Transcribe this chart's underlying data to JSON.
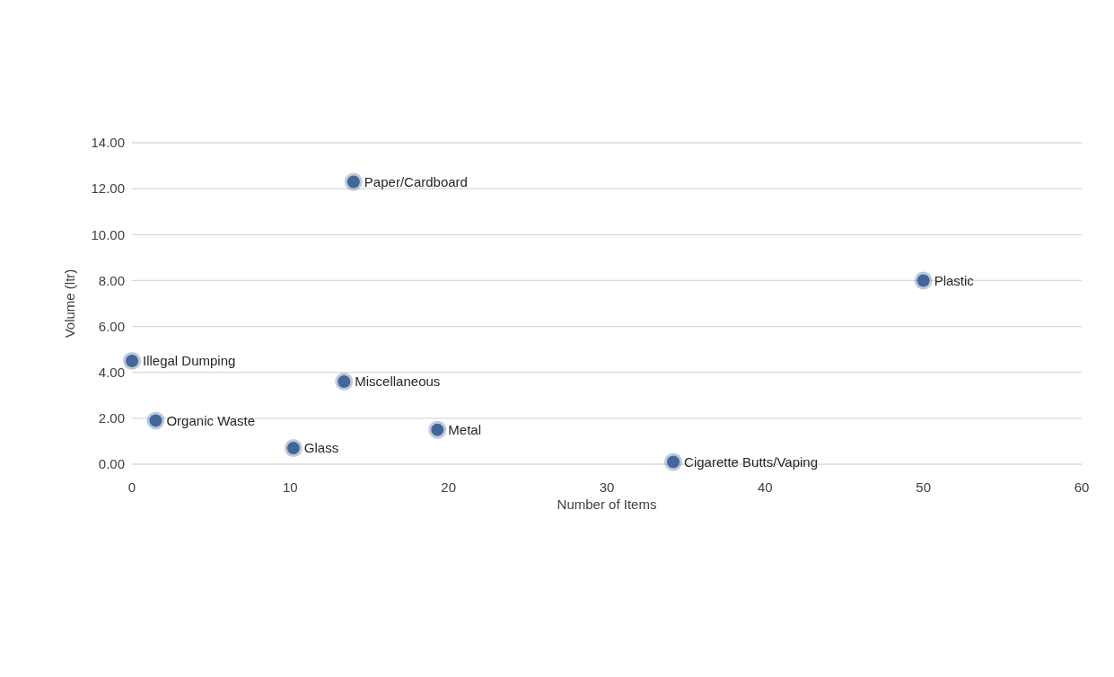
{
  "chart_data": {
    "type": "scatter",
    "xlabel": "Number of Items",
    "ylabel": "Volume (ltr)",
    "x": [
      14,
      50,
      0,
      13.4,
      1.5,
      10.2,
      19.3,
      34.2
    ],
    "series": [
      {
        "color": "#44679a",
        "values": [
          12.3,
          8.0,
          4.5,
          3.6,
          1.9,
          0.7,
          1.5,
          0.1
        ]
      }
    ],
    "annotations": [
      {
        "text": "Paper/Cardboard",
        "x": 14,
        "y": 12.3
      },
      {
        "text": "Plastic",
        "x": 50,
        "y": 8.0
      },
      {
        "text": "Illegal  Dumping",
        "x": 0,
        "y": 4.5
      },
      {
        "text": "Miscellaneous",
        "x": 13.4,
        "y": 3.6
      },
      {
        "text": "Organic Waste",
        "x": 1.5,
        "y": 1.9
      },
      {
        "text": "Glass",
        "x": 10.2,
        "y": 0.7
      },
      {
        "text": "Metal",
        "x": 19.3,
        "y": 1.5
      },
      {
        "text": "Cigarette  Butts/Vaping",
        "x": 34.2,
        "y": 0.1
      }
    ],
    "xlim": [
      0,
      60
    ],
    "xticks": [
      0,
      10,
      20,
      30,
      40,
      50,
      60
    ],
    "ylim": [
      0,
      14
    ],
    "yticks": [
      {
        "value": 0,
        "label": "0.00"
      },
      {
        "value": 2,
        "label": "2.00"
      },
      {
        "value": 4,
        "label": "4.00"
      },
      {
        "value": 6,
        "label": "6.00"
      },
      {
        "value": 8,
        "label": "8.00"
      },
      {
        "value": 10,
        "label": "10.00"
      },
      {
        "value": 12,
        "label": "12.00"
      },
      {
        "value": 14,
        "label": "14.00"
      }
    ],
    "grid": "y",
    "marker": "circle",
    "legend": false
  }
}
